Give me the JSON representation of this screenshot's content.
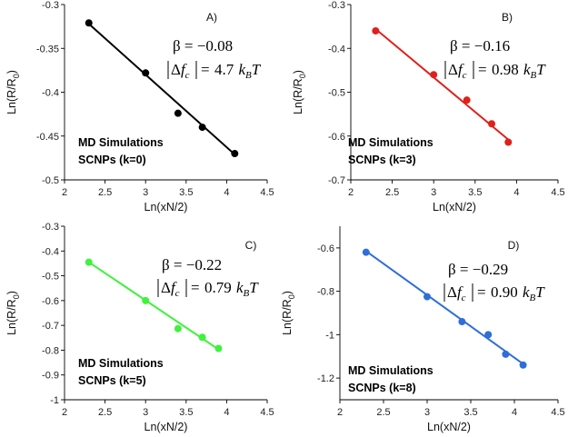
{
  "chart_data": [
    {
      "type": "scatter",
      "panel": "A)",
      "xlabel": "Ln(xN/2)",
      "ylabel": "Ln(R/R",
      "ylabel_sub": "0",
      "ylabel_close": ")",
      "xlim": [
        2,
        4.5
      ],
      "ylim": [
        -0.5,
        -0.3
      ],
      "xticks": [
        2,
        2.5,
        3,
        3.5,
        4,
        4.5
      ],
      "xtick_labels": [
        "2",
        "2.5",
        "3",
        "3.5",
        "4",
        "4.5"
      ],
      "yticks": [
        -0.3,
        -0.35,
        -0.4,
        -0.45,
        -0.5
      ],
      "ytick_labels": [
        "-0.3",
        "-0.35",
        "-0.4",
        "-0.45",
        "-0.5"
      ],
      "color": "#000000",
      "x": [
        2.3,
        3.0,
        3.4,
        3.7,
        4.1
      ],
      "y": [
        -0.321,
        -0.378,
        -0.424,
        -0.44,
        -0.47
      ],
      "fit": {
        "x": [
          2.3,
          4.1
        ],
        "y": [
          -0.322,
          -0.471
        ]
      },
      "beta_text": "β = −0.08",
      "df_value": "4.7",
      "sim_label": "MD Simulations",
      "sim_label2": "SCNPs (k=0)"
    },
    {
      "type": "scatter",
      "panel": "B)",
      "xlabel": "Ln(xN/2)",
      "ylabel": "Ln(R/R",
      "ylabel_sub": "0",
      "ylabel_close": ")",
      "xlim": [
        2,
        4.5
      ],
      "ylim": [
        -0.7,
        -0.3
      ],
      "xticks": [
        2,
        2.5,
        3,
        3.5,
        4,
        4.5
      ],
      "xtick_labels": [
        "2",
        "2.5",
        "3",
        "3.5",
        "4",
        "4.5"
      ],
      "yticks": [
        -0.3,
        -0.4,
        -0.5,
        -0.6,
        -0.7
      ],
      "ytick_labels": [
        "-0.3",
        "-0.4",
        "-0.5",
        "-0.6",
        "-0.7"
      ],
      "color": "#e0201b",
      "x": [
        2.3,
        3.0,
        3.4,
        3.7,
        3.9
      ],
      "y": [
        -0.36,
        -0.46,
        -0.518,
        -0.572,
        -0.614
      ],
      "fit": {
        "x": [
          2.3,
          3.9
        ],
        "y": [
          -0.356,
          -0.608
        ]
      },
      "beta_text": "β = −0.16",
      "df_value": "0.98",
      "sim_label": "MD Simulations",
      "sim_label2": "SCNPs (k=3)"
    },
    {
      "type": "scatter",
      "panel": "C)",
      "xlabel": "Ln(xN/2)",
      "ylabel": "Ln(R/R",
      "ylabel_sub": "0",
      "ylabel_close": ")",
      "xlim": [
        2,
        4.5
      ],
      "ylim": [
        -1,
        -0.3
      ],
      "xticks": [
        2,
        2.5,
        3,
        3.5,
        4,
        4.5
      ],
      "xtick_labels": [
        "2",
        "2.5",
        "3",
        "3.5",
        "4",
        "4.5"
      ],
      "yticks": [
        -0.3,
        -0.4,
        -0.5,
        -0.6,
        -0.7,
        -0.8,
        -0.9,
        -1
      ],
      "ytick_labels": [
        "-0.3",
        "-0.4",
        "-0.5",
        "-0.6",
        "-0.7",
        "-0.8",
        "-0.9",
        "-1"
      ],
      "color": "#3ff23c",
      "x": [
        2.3,
        3.0,
        3.4,
        3.7,
        3.9
      ],
      "y": [
        -0.445,
        -0.6,
        -0.713,
        -0.748,
        -0.793
      ],
      "fit": {
        "x": [
          2.3,
          3.9
        ],
        "y": [
          -0.445,
          -0.797
        ]
      },
      "beta_text": "β = −0.22",
      "df_value": "0.79",
      "sim_label": "MD Simulations",
      "sim_label2": "SCNPs (k=5)"
    },
    {
      "type": "scatter",
      "panel": "D)",
      "xlabel": "Ln(xN/2)",
      "ylabel": "Ln(R/R",
      "ylabel_sub": "0",
      "ylabel_close": ")",
      "xlim": [
        2,
        4.5
      ],
      "ylim": [
        -1.3,
        -0.5
      ],
      "xticks": [
        2,
        2.5,
        3,
        3.5,
        4,
        4.5
      ],
      "xtick_labels": [
        "2",
        "2.5",
        "3",
        "3.5",
        "4",
        "4.5"
      ],
      "yticks": [
        -0.6,
        -0.8,
        -1,
        -1.2
      ],
      "ytick_labels": [
        "-0.6",
        "-0.8",
        "-1",
        "-1.2"
      ],
      "color": "#2f6ed8",
      "x": [
        2.3,
        3.0,
        3.4,
        3.7,
        3.9,
        4.1
      ],
      "y": [
        -0.62,
        -0.825,
        -0.94,
        -1.0,
        -1.09,
        -1.14
      ],
      "fit": {
        "x": [
          2.3,
          4.1
        ],
        "y": [
          -0.615,
          -1.135
        ]
      },
      "beta_text": "β = −0.29",
      "df_value": "0.90",
      "sim_label": "MD Simulations",
      "sim_label2": "SCNPs (k=8)"
    }
  ]
}
